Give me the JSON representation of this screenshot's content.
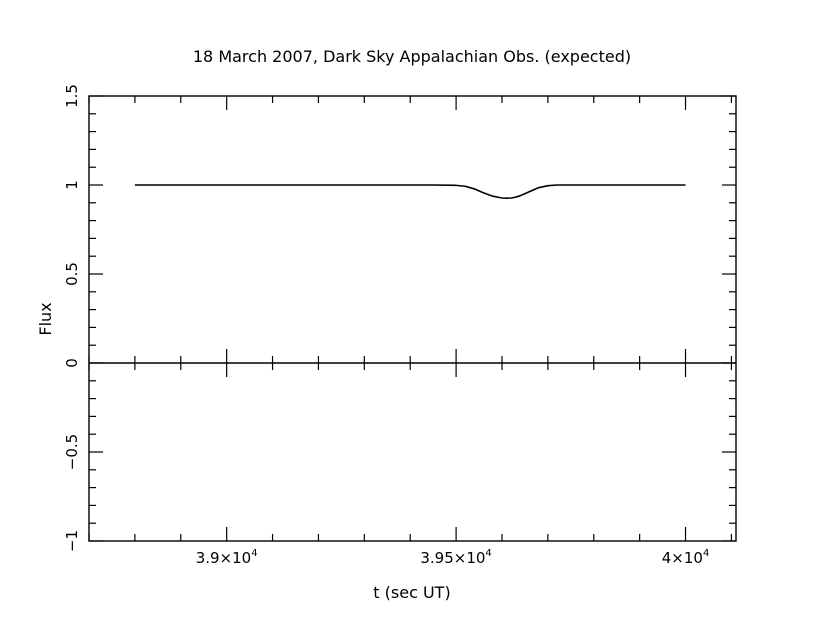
{
  "chart_data": {
    "type": "line",
    "title": "18 March 2007, Dark Sky Appalachian Obs. (expected)",
    "xlabel": "t (sec UT)",
    "ylabel": "Flux",
    "xlim": [
      38700,
      40110
    ],
    "ylim": [
      -1,
      1.5
    ],
    "grid": false,
    "zero_line": true,
    "x_ticks": [
      {
        "value": 39000,
        "mantissa": "3.9",
        "exponent": "4"
      },
      {
        "value": 39500,
        "mantissa": "3.95",
        "exponent": "4"
      },
      {
        "value": 40000,
        "mantissa": "4",
        "exponent": "4"
      }
    ],
    "y_ticks": [
      {
        "value": -1,
        "label": "−1"
      },
      {
        "value": -0.5,
        "label": "−0.5"
      },
      {
        "value": 0,
        "label": "0"
      },
      {
        "value": 0.5,
        "label": "0.5"
      },
      {
        "value": 1,
        "label": "1"
      },
      {
        "value": 1.5,
        "label": "1.5"
      }
    ],
    "series": [
      {
        "x": [
          38800,
          38900,
          39000,
          39100,
          39200,
          39300,
          39400,
          39450,
          39500,
          39520,
          39540,
          39560,
          39580,
          39600,
          39610,
          39620,
          39630,
          39640,
          39660,
          39680,
          39700,
          39720,
          39750,
          39800,
          39900,
          40000
        ],
        "y": [
          1.0,
          1.0,
          1.0,
          1.0,
          1.0,
          1.0,
          1.0,
          1.0,
          0.998,
          0.993,
          0.978,
          0.956,
          0.937,
          0.927,
          0.926,
          0.927,
          0.932,
          0.94,
          0.963,
          0.985,
          0.996,
          1.0,
          1.0,
          1.0,
          1.0,
          1.0
        ]
      }
    ]
  }
}
